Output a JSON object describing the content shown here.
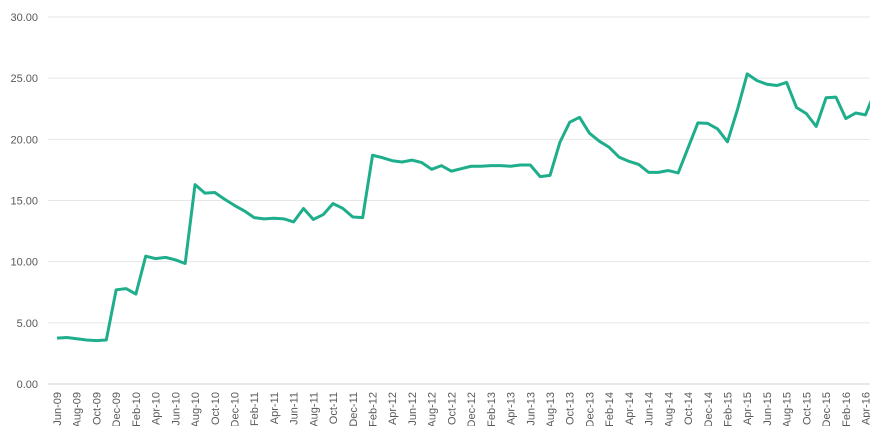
{
  "chart_data": {
    "type": "line",
    "categories": [
      "Jun-09",
      null,
      "Aug-09",
      null,
      "Oct-09",
      null,
      "Dec-09",
      null,
      "Feb-10",
      null,
      "Apr-10",
      null,
      "Jun-10",
      null,
      "Aug-10",
      null,
      "Oct-10",
      null,
      "Dec-10",
      null,
      "Feb-11",
      null,
      "Apr-11",
      null,
      "Jun-11",
      null,
      "Aug-11",
      null,
      "Oct-11",
      null,
      "Dec-11",
      null,
      "Feb-12",
      null,
      "Apr-12",
      null,
      "Jun-12",
      null,
      "Aug-12",
      null,
      "Oct-12",
      null,
      "Dec-12",
      null,
      "Feb-13",
      null,
      "Apr-13",
      null,
      "Jun-13",
      null,
      "Aug-13",
      null,
      "Oct-13",
      null,
      "Dec-13",
      null,
      "Feb-14",
      null,
      "Apr-14",
      null,
      "Jun-14",
      null,
      "Aug-14",
      null,
      "Oct-14",
      null,
      "Dec-14",
      null,
      "Feb-15",
      null,
      "Apr-15",
      null,
      "Jun-15",
      null,
      "Aug-15",
      null,
      "Oct-15",
      null,
      "Dec-15",
      null,
      "Feb-16",
      null,
      "Apr-16",
      null
    ],
    "series": [
      {
        "color": "#1fae8b",
        "values": [
          3.75,
          3.8,
          3.7,
          3.6,
          3.55,
          3.6,
          7.7,
          7.8,
          7.35,
          10.45,
          10.25,
          10.35,
          10.15,
          9.85,
          16.3,
          15.6,
          15.65,
          15.1,
          14.6,
          14.15,
          13.6,
          13.5,
          13.55,
          13.5,
          13.25,
          14.35,
          13.45,
          13.85,
          14.75,
          14.35,
          13.65,
          13.6,
          18.7,
          18.5,
          18.25,
          18.15,
          18.3,
          18.1,
          17.55,
          17.85,
          17.4,
          17.6,
          17.8,
          17.8,
          17.85,
          17.85,
          17.8,
          17.9,
          17.9,
          16.95,
          17.05,
          19.75,
          21.4,
          21.8,
          20.5,
          19.85,
          19.35,
          18.55,
          18.2,
          17.95,
          17.3,
          17.3,
          17.45,
          17.25,
          19.3,
          21.35,
          21.3,
          20.85,
          19.8,
          22.4,
          25.35,
          24.8,
          24.5,
          24.4,
          24.65,
          22.6,
          22.1,
          21.05,
          23.4,
          23.45,
          21.7,
          22.15,
          22.0,
          24.0
        ]
      }
    ],
    "ylim": [
      0,
      30
    ],
    "yticks": [
      {
        "value": 0,
        "label": "0.00"
      },
      {
        "value": 5,
        "label": "5.00"
      },
      {
        "value": 10,
        "label": "10.00"
      },
      {
        "value": 15,
        "label": "15.00"
      },
      {
        "value": 20,
        "label": "20.00"
      },
      {
        "value": 25,
        "label": "25.00"
      },
      {
        "value": 30,
        "label": "30.00"
      }
    ],
    "grid": true
  }
}
